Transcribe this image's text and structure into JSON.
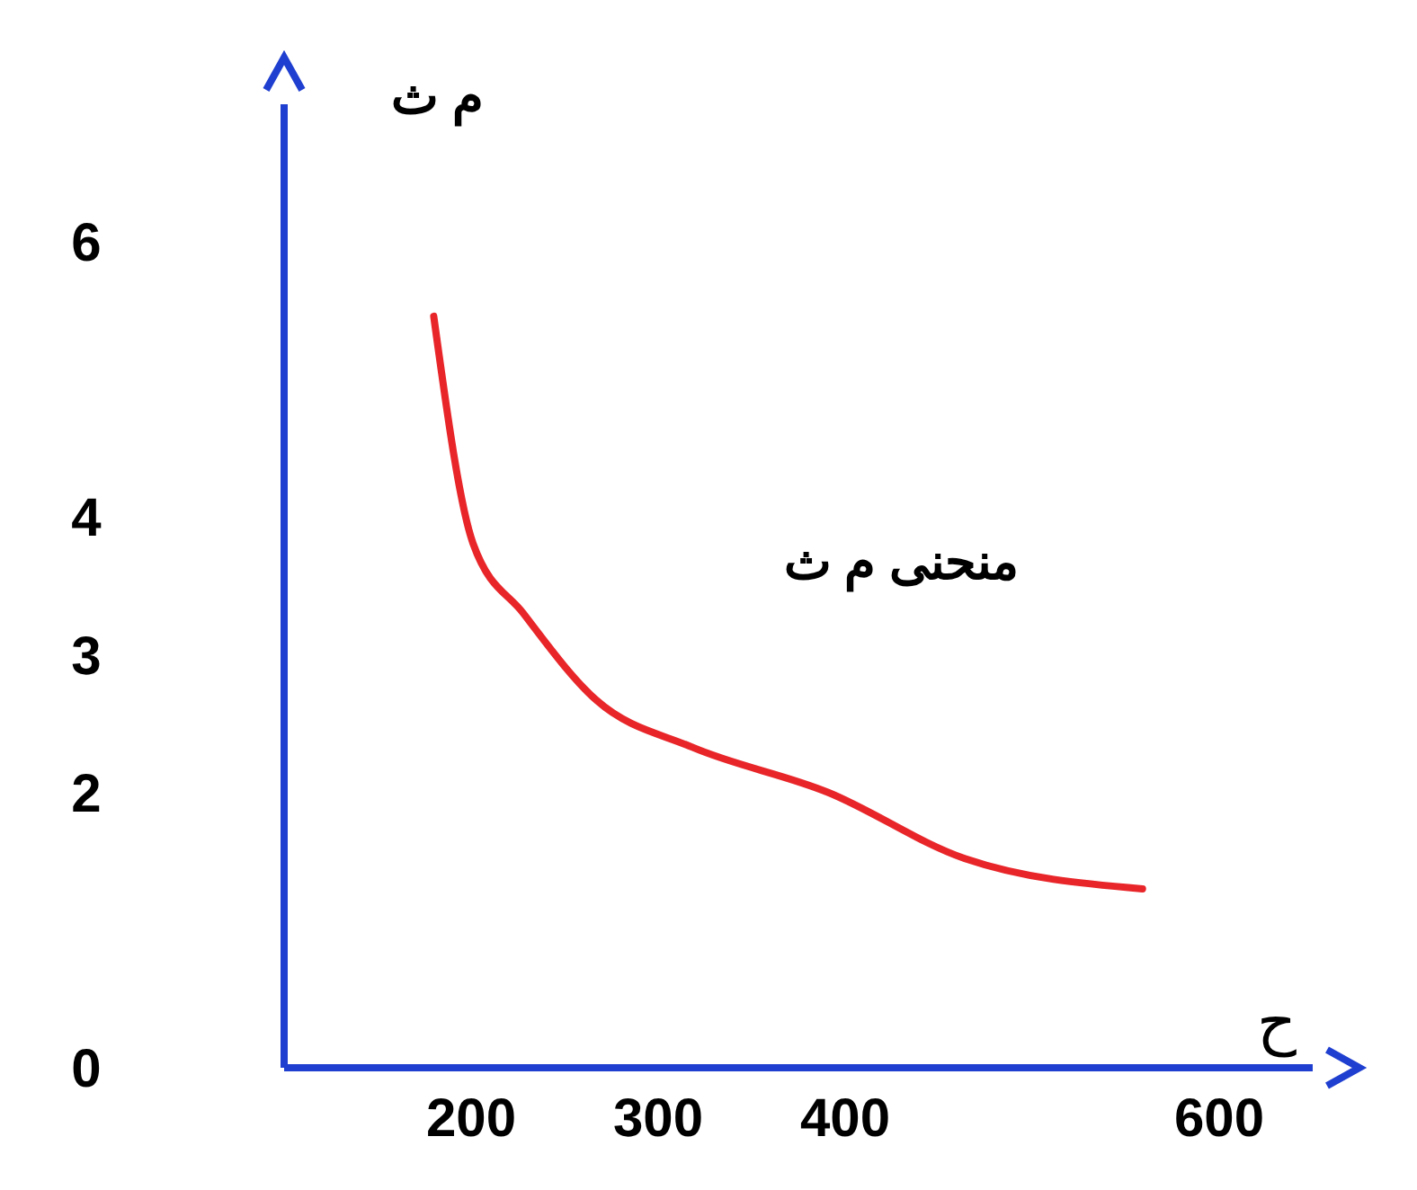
{
  "chart_data": {
    "type": "line",
    "ylabel": "م ث",
    "xlabel": "ح",
    "xlim": [
      100,
      650
    ],
    "xticks": [
      200,
      300,
      400,
      600
    ],
    "ylim": [
      0,
      7
    ],
    "yticks": [
      0,
      2,
      3,
      4,
      6
    ],
    "grid": false,
    "marker": "none",
    "line_style": "solid",
    "annotations": [
      "منحنى م ث"
    ],
    "series": [
      {
        "color": "#e8262a",
        "x": [
          180,
          201,
          228,
          267,
          318,
          391,
          464,
          559
        ],
        "values": [
          5.46,
          3.81,
          3.3,
          2.67,
          2.33,
          2.0,
          1.52,
          1.3
        ]
      }
    ]
  }
}
